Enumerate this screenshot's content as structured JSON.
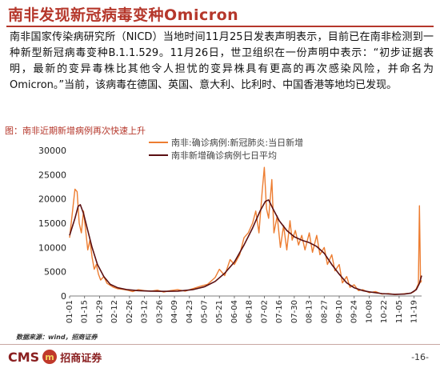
{
  "header": {
    "title": "南非发现新冠病毒变种Omicron"
  },
  "paragraph": "南非国家传染病研究所（NICD）当地时间11月25日发表声明表示，目前已在南非检测到一种新型新冠病毒变种B.1.1.529。11月26日，世卫组织在一份声明中表示：“初步证据表明，最新的变异毒株比其他令人担忧的变异株具有更高的再次感染风险，并命名为Omicron。”当前，该病毒在德国、英国、意大利、比利时、中国香港等地均已发现。",
  "figure_caption": "图：南非近期新增病例再次快速上升",
  "source": "数据来源：wind，招商证券",
  "footer": {
    "logo_text": "CMS",
    "logo_mark": "m",
    "logo_cn": "招商证券",
    "page": "-16-"
  },
  "colors": {
    "accent": "#b5372b",
    "daily_series": "#ed7d31",
    "avg_series": "#5a0f12"
  },
  "chart_data": {
    "type": "line",
    "title": "",
    "xlabel": "",
    "ylabel": "",
    "ylim": [
      0,
      30000
    ],
    "yticks": [
      0,
      5000,
      10000,
      15000,
      20000,
      25000,
      30000
    ],
    "x_ticks": [
      "01-01",
      "01-15",
      "01-29",
      "02-12",
      "02-26",
      "03-12",
      "03-26",
      "04-09",
      "04-23",
      "05-07",
      "05-21",
      "06-04",
      "06-18",
      "07-02",
      "07-16",
      "07-30",
      "08-13",
      "08-27",
      "09-10",
      "09-24",
      "10-08",
      "10-22",
      "11-05",
      "11-19"
    ],
    "legend_position": "top",
    "grid": false,
    "series": [
      {
        "name": "南非:确诊病例:新冠肺炎:当日新增",
        "points": [
          [
            "01-01",
            12000
          ],
          [
            "01-04",
            18000
          ],
          [
            "01-06",
            22000
          ],
          [
            "01-08",
            21500
          ],
          [
            "01-10",
            15000
          ],
          [
            "01-12",
            13000
          ],
          [
            "01-14",
            17500
          ],
          [
            "01-16",
            13500
          ],
          [
            "01-18",
            9500
          ],
          [
            "01-20",
            11500
          ],
          [
            "01-22",
            8000
          ],
          [
            "01-24",
            5500
          ],
          [
            "01-26",
            6500
          ],
          [
            "01-28",
            4500
          ],
          [
            "01-30",
            3300
          ],
          [
            "02-02",
            4000
          ],
          [
            "02-05",
            2600
          ],
          [
            "02-08",
            2200
          ],
          [
            "02-11",
            1800
          ],
          [
            "02-15",
            1500
          ],
          [
            "02-19",
            1400
          ],
          [
            "02-24",
            1200
          ],
          [
            "03-01",
            900
          ],
          [
            "03-06",
            1300
          ],
          [
            "03-12",
            1100
          ],
          [
            "03-18",
            1000
          ],
          [
            "03-24",
            1200
          ],
          [
            "03-30",
            800
          ],
          [
            "04-05",
            1100
          ],
          [
            "04-12",
            1300
          ],
          [
            "04-19",
            1000
          ],
          [
            "04-26",
            1500
          ],
          [
            "05-03",
            2000
          ],
          [
            "05-10",
            2400
          ],
          [
            "05-17",
            3800
          ],
          [
            "05-21",
            5500
          ],
          [
            "05-26",
            4200
          ],
          [
            "05-31",
            7500
          ],
          [
            "06-04",
            6500
          ],
          [
            "06-09",
            8500
          ],
          [
            "06-13",
            12000
          ],
          [
            "06-17",
            13000
          ],
          [
            "06-21",
            15000
          ],
          [
            "06-24",
            17500
          ],
          [
            "06-27",
            13000
          ],
          [
            "06-30",
            21500
          ],
          [
            "07-02",
            26500
          ],
          [
            "07-04",
            18000
          ],
          [
            "07-06",
            16000
          ],
          [
            "07-09",
            24000
          ],
          [
            "07-11",
            13000
          ],
          [
            "07-14",
            16500
          ],
          [
            "07-17",
            10000
          ],
          [
            "07-20",
            14500
          ],
          [
            "07-23",
            9500
          ],
          [
            "07-26",
            15500
          ],
          [
            "07-28",
            11500
          ],
          [
            "07-31",
            13500
          ],
          [
            "08-03",
            10500
          ],
          [
            "08-06",
            12500
          ],
          [
            "08-09",
            9500
          ],
          [
            "08-13",
            13000
          ],
          [
            "08-16",
            9000
          ],
          [
            "08-20",
            12500
          ],
          [
            "08-23",
            8500
          ],
          [
            "08-27",
            10000
          ],
          [
            "08-30",
            6500
          ],
          [
            "09-03",
            8500
          ],
          [
            "09-06",
            5200
          ],
          [
            "09-10",
            6500
          ],
          [
            "09-13",
            2700
          ],
          [
            "09-17",
            4000
          ],
          [
            "09-20",
            1800
          ],
          [
            "09-24",
            2300
          ],
          [
            "09-28",
            1100
          ],
          [
            "10-02",
            1300
          ],
          [
            "10-08",
            700
          ],
          [
            "10-14",
            900
          ],
          [
            "10-20",
            400
          ],
          [
            "10-26",
            500
          ],
          [
            "11-01",
            300
          ],
          [
            "11-07",
            400
          ],
          [
            "11-12",
            500
          ],
          [
            "11-16",
            600
          ],
          [
            "11-19",
            900
          ],
          [
            "11-21",
            1500
          ],
          [
            "11-23",
            2500
          ],
          [
            "11-24",
            18600
          ],
          [
            "11-25",
            2800
          ],
          [
            "11-26",
            3200
          ]
        ]
      },
      {
        "name": "南非新增确诊病例七日平均",
        "points": [
          [
            "01-01",
            12500
          ],
          [
            "01-06",
            16000
          ],
          [
            "01-09",
            18500
          ],
          [
            "01-11",
            18800
          ],
          [
            "01-14",
            17000
          ],
          [
            "01-18",
            13500
          ],
          [
            "01-22",
            10000
          ],
          [
            "01-27",
            6500
          ],
          [
            "02-02",
            4000
          ],
          [
            "02-08",
            2400
          ],
          [
            "02-15",
            1700
          ],
          [
            "02-24",
            1300
          ],
          [
            "03-06",
            1100
          ],
          [
            "03-18",
            1000
          ],
          [
            "03-30",
            950
          ],
          [
            "04-12",
            1000
          ],
          [
            "04-26",
            1300
          ],
          [
            "05-07",
            1900
          ],
          [
            "05-17",
            3000
          ],
          [
            "05-26",
            4700
          ],
          [
            "06-04",
            7000
          ],
          [
            "06-13",
            10500
          ],
          [
            "06-21",
            14000
          ],
          [
            "06-28",
            17500
          ],
          [
            "07-03",
            19500
          ],
          [
            "07-06",
            19800
          ],
          [
            "07-10",
            18000
          ],
          [
            "07-16",
            15500
          ],
          [
            "07-23",
            13500
          ],
          [
            "07-30",
            12200
          ],
          [
            "08-06",
            11500
          ],
          [
            "08-13",
            11000
          ],
          [
            "08-20",
            10200
          ],
          [
            "08-27",
            8800
          ],
          [
            "09-03",
            6500
          ],
          [
            "09-10",
            4500
          ],
          [
            "09-17",
            2700
          ],
          [
            "09-24",
            1700
          ],
          [
            "10-02",
            1100
          ],
          [
            "10-08",
            850
          ],
          [
            "10-20",
            500
          ],
          [
            "11-01",
            350
          ],
          [
            "11-10",
            400
          ],
          [
            "11-16",
            600
          ],
          [
            "11-21",
            1300
          ],
          [
            "11-24",
            2600
          ],
          [
            "11-26",
            4200
          ]
        ]
      }
    ]
  }
}
